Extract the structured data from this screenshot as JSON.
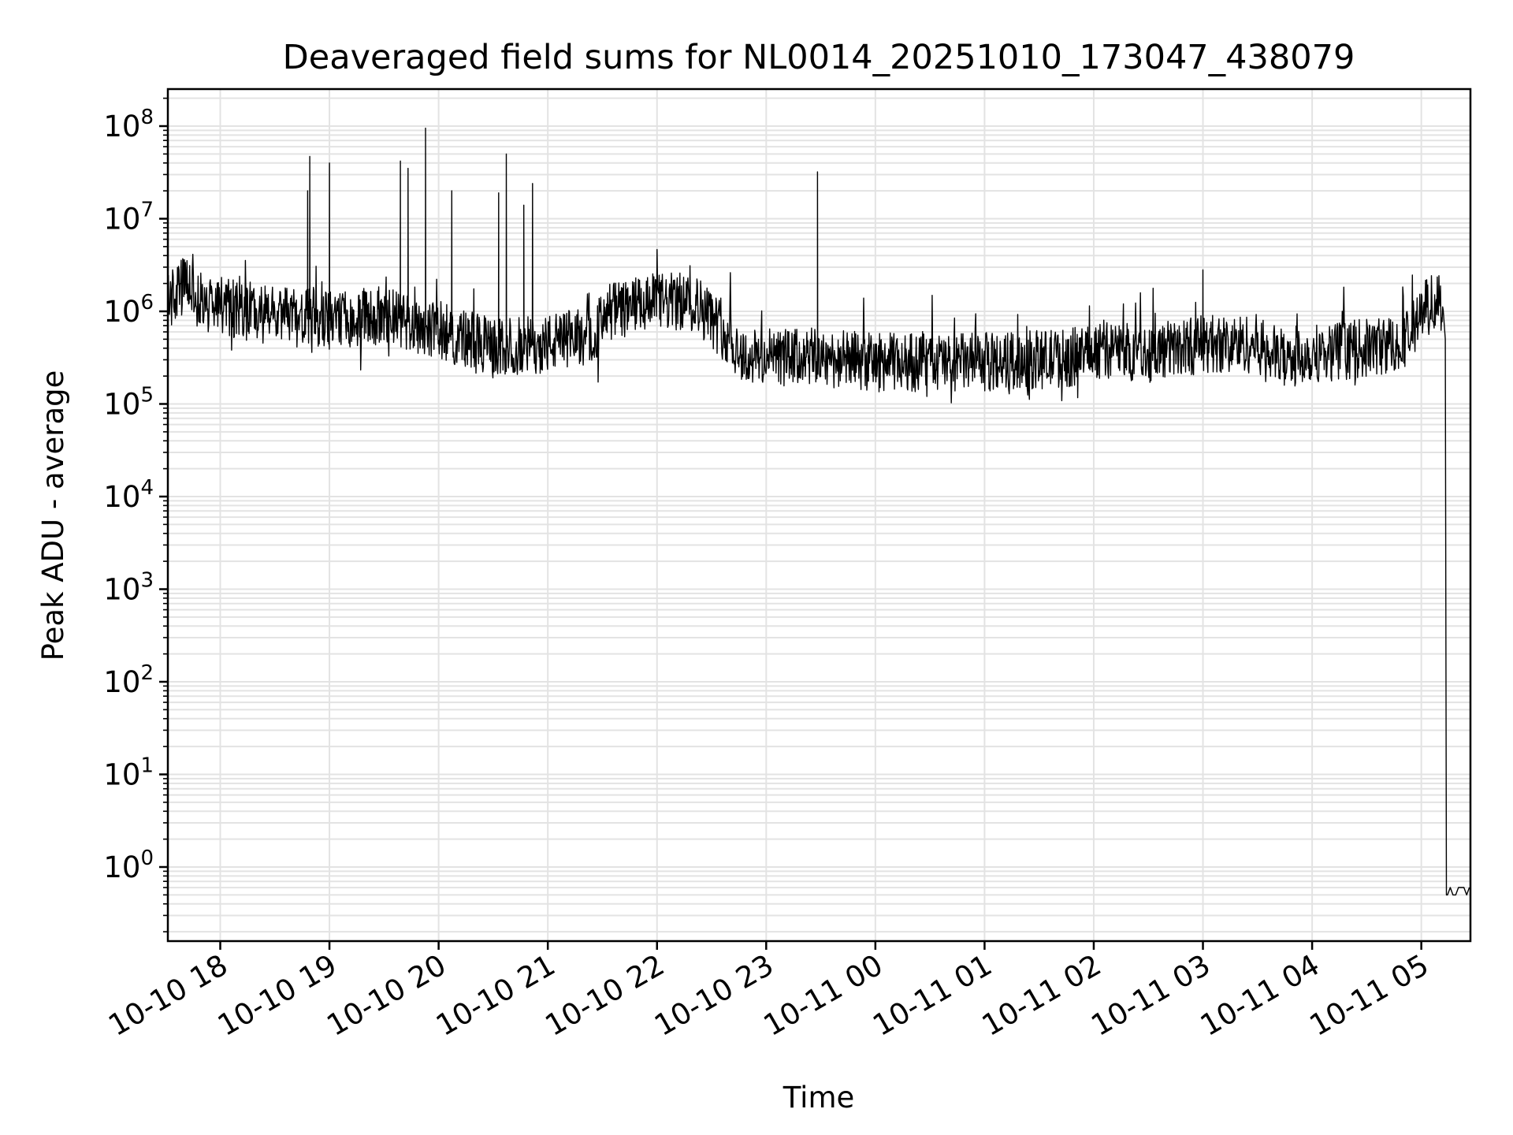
{
  "chart_data": {
    "type": "line",
    "title": "Deaveraged field sums for NL0014_20251010_173047_438079",
    "xlabel": "Time",
    "ylabel": "Peak ADU - average",
    "yscale": "log",
    "xlim_hours": [
      -0.48,
      11.45
    ],
    "ylim_log10": [
      -0.8,
      8.4
    ],
    "grid": true,
    "line_color": "#000000",
    "grid_color": "#e3e3e3",
    "x_ticks": [
      {
        "hour": 0,
        "label": "10-10 18"
      },
      {
        "hour": 1,
        "label": "10-10 19"
      },
      {
        "hour": 2,
        "label": "10-10 20"
      },
      {
        "hour": 3,
        "label": "10-10 21"
      },
      {
        "hour": 4,
        "label": "10-10 22"
      },
      {
        "hour": 5,
        "label": "10-10 23"
      },
      {
        "hour": 6,
        "label": "10-11 00"
      },
      {
        "hour": 7,
        "label": "10-11 01"
      },
      {
        "hour": 8,
        "label": "10-11 02"
      },
      {
        "hour": 9,
        "label": "10-11 03"
      },
      {
        "hour": 10,
        "label": "10-11 04"
      },
      {
        "hour": 11,
        "label": "10-11 05"
      }
    ],
    "y_ticks": [
      {
        "exp": 0,
        "base": "10",
        "sup": "0"
      },
      {
        "exp": 1,
        "base": "10",
        "sup": "1"
      },
      {
        "exp": 2,
        "base": "10",
        "sup": "2"
      },
      {
        "exp": 3,
        "base": "10",
        "sup": "3"
      },
      {
        "exp": 4,
        "base": "10",
        "sup": "4"
      },
      {
        "exp": 5,
        "base": "10",
        "sup": "5"
      },
      {
        "exp": 6,
        "base": "10",
        "sup": "6"
      },
      {
        "exp": 7,
        "base": "10",
        "sup": "7"
      },
      {
        "exp": 8,
        "base": "10",
        "sup": "8"
      }
    ],
    "trend_log10": [
      [
        -0.48,
        6.1
      ],
      [
        -0.4,
        6.2
      ],
      [
        -0.3,
        6.3
      ],
      [
        -0.2,
        6.1
      ],
      [
        0.5,
        5.95
      ],
      [
        1.0,
        5.9
      ],
      [
        1.5,
        5.95
      ],
      [
        2.0,
        5.8
      ],
      [
        2.5,
        5.6
      ],
      [
        3.0,
        5.65
      ],
      [
        3.4,
        5.75
      ],
      [
        3.6,
        6.0
      ],
      [
        4.0,
        6.1
      ],
      [
        4.35,
        6.1
      ],
      [
        4.6,
        5.8
      ],
      [
        4.8,
        5.5
      ],
      [
        5.5,
        5.5
      ],
      [
        6.0,
        5.45
      ],
      [
        7.0,
        5.45
      ],
      [
        7.8,
        5.5
      ],
      [
        8.0,
        5.6
      ],
      [
        8.5,
        5.55
      ],
      [
        9.0,
        5.65
      ],
      [
        9.5,
        5.65
      ],
      [
        9.7,
        5.5
      ],
      [
        10.0,
        5.55
      ],
      [
        10.5,
        5.6
      ],
      [
        10.75,
        5.65
      ],
      [
        10.9,
        5.75
      ],
      [
        11.0,
        6.0
      ],
      [
        11.15,
        6.14
      ],
      [
        11.2,
        6.05
      ]
    ],
    "noise_amplitude_log10": 0.32,
    "spikes": [
      {
        "hour": 0.8,
        "value": 20000000
      },
      {
        "hour": 0.82,
        "value": 47000000
      },
      {
        "hour": 1.0,
        "value": 40000000
      },
      {
        "hour": 1.65,
        "value": 42000000
      },
      {
        "hour": 1.72,
        "value": 35000000
      },
      {
        "hour": 1.88,
        "value": 95000000
      },
      {
        "hour": 2.12,
        "value": 20000000
      },
      {
        "hour": 2.55,
        "value": 19000000
      },
      {
        "hour": 2.62,
        "value": 50000000
      },
      {
        "hour": 2.78,
        "value": 14000000
      },
      {
        "hour": 2.86,
        "value": 24000000
      },
      {
        "hour": 5.47,
        "value": 32000000
      },
      {
        "hour": 9.0,
        "value": 2800000
      }
    ],
    "drop": {
      "start_hour": 11.2,
      "end_hour": 11.3,
      "final_value": 0.5
    }
  }
}
